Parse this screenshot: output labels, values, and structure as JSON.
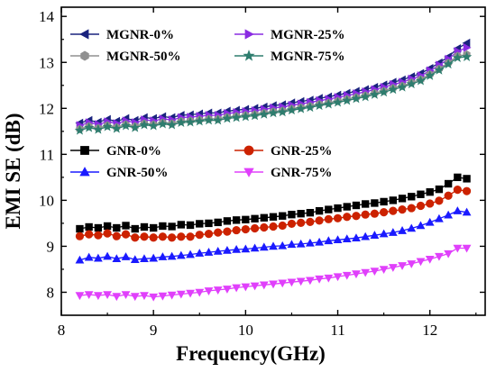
{
  "chart_data": {
    "type": "line",
    "xlabel": "Frequency(GHz)",
    "ylabel": "EMI SE (dB)",
    "xlim": [
      8,
      12.6
    ],
    "ylim": [
      7.5,
      14.2
    ],
    "xticks": [
      "8",
      "9",
      "10",
      "11",
      "12"
    ],
    "yticks": [
      "8",
      "9",
      "10",
      "11",
      "12",
      "13",
      "14"
    ],
    "grid": false,
    "x": [
      8.2,
      8.3,
      8.4,
      8.5,
      8.6,
      8.7,
      8.8,
      8.9,
      9.0,
      9.1,
      9.2,
      9.3,
      9.4,
      9.5,
      9.6,
      9.7,
      9.8,
      9.9,
      10.0,
      10.1,
      10.2,
      10.3,
      10.4,
      10.5,
      10.6,
      10.7,
      10.8,
      10.9,
      11.0,
      11.1,
      11.2,
      11.3,
      11.4,
      11.5,
      11.6,
      11.7,
      11.8,
      11.9,
      12.0,
      12.1,
      12.2,
      12.3,
      12.4
    ],
    "series": [
      {
        "name": "MGNR-0%",
        "color": "#1a237e",
        "marker": "triangle-left",
        "values": [
          11.68,
          11.74,
          11.7,
          11.76,
          11.72,
          11.78,
          11.74,
          11.8,
          11.78,
          11.82,
          11.8,
          11.85,
          11.86,
          11.88,
          11.9,
          11.9,
          11.94,
          11.96,
          11.98,
          12.0,
          12.03,
          12.06,
          12.08,
          12.12,
          12.15,
          12.18,
          12.22,
          12.25,
          12.29,
          12.33,
          12.37,
          12.41,
          12.46,
          12.51,
          12.57,
          12.62,
          12.69,
          12.76,
          12.87,
          12.99,
          13.12,
          13.3,
          13.42
        ]
      },
      {
        "name": "MGNR-25%",
        "color": "#8a2be2",
        "marker": "triangle-right",
        "values": [
          11.63,
          11.69,
          11.65,
          11.71,
          11.67,
          11.73,
          11.69,
          11.75,
          11.73,
          11.77,
          11.75,
          11.8,
          11.81,
          11.83,
          11.85,
          11.85,
          11.89,
          11.91,
          11.93,
          11.95,
          11.98,
          12.01,
          12.03,
          12.07,
          12.1,
          12.13,
          12.17,
          12.2,
          12.24,
          12.28,
          12.32,
          12.36,
          12.41,
          12.46,
          12.52,
          12.57,
          12.64,
          12.71,
          12.82,
          12.94,
          13.07,
          13.24,
          13.32
        ]
      },
      {
        "name": "MGNR-50%",
        "color": "#909090",
        "marker": "hexagon",
        "values": [
          11.55,
          11.61,
          11.57,
          11.63,
          11.59,
          11.65,
          11.61,
          11.67,
          11.65,
          11.69,
          11.67,
          11.72,
          11.73,
          11.75,
          11.77,
          11.77,
          11.81,
          11.83,
          11.85,
          11.87,
          11.9,
          11.93,
          11.95,
          11.99,
          12.02,
          12.05,
          12.09,
          12.12,
          12.16,
          12.2,
          12.24,
          12.28,
          12.33,
          12.38,
          12.44,
          12.49,
          12.56,
          12.63,
          12.74,
          12.86,
          12.99,
          13.14,
          13.17
        ]
      },
      {
        "name": "MGNR-75%",
        "color": "#2e7d6e",
        "marker": "star",
        "values": [
          11.52,
          11.58,
          11.54,
          11.6,
          11.56,
          11.62,
          11.58,
          11.64,
          11.62,
          11.66,
          11.64,
          11.69,
          11.7,
          11.72,
          11.74,
          11.74,
          11.78,
          11.8,
          11.82,
          11.84,
          11.87,
          11.9,
          11.92,
          11.96,
          11.99,
          12.02,
          12.06,
          12.09,
          12.13,
          12.17,
          12.21,
          12.25,
          12.3,
          12.35,
          12.41,
          12.46,
          12.53,
          12.6,
          12.71,
          12.83,
          12.96,
          13.1,
          13.12
        ]
      },
      {
        "name": "GNR-0%",
        "color": "#000000",
        "marker": "square",
        "values": [
          9.38,
          9.42,
          9.4,
          9.44,
          9.4,
          9.45,
          9.38,
          9.42,
          9.4,
          9.44,
          9.43,
          9.47,
          9.46,
          9.49,
          9.5,
          9.52,
          9.55,
          9.57,
          9.58,
          9.6,
          9.62,
          9.64,
          9.66,
          9.69,
          9.71,
          9.73,
          9.77,
          9.8,
          9.83,
          9.86,
          9.89,
          9.92,
          9.94,
          9.97,
          10.0,
          10.04,
          10.08,
          10.13,
          10.18,
          10.24,
          10.36,
          10.5,
          10.47
        ]
      },
      {
        "name": "GNR-25%",
        "color": "#cc2200",
        "marker": "circle",
        "values": [
          9.22,
          9.26,
          9.24,
          9.28,
          9.22,
          9.26,
          9.19,
          9.21,
          9.19,
          9.21,
          9.19,
          9.21,
          9.21,
          9.25,
          9.27,
          9.3,
          9.32,
          9.35,
          9.37,
          9.39,
          9.41,
          9.43,
          9.45,
          9.49,
          9.51,
          9.53,
          9.56,
          9.59,
          9.61,
          9.64,
          9.66,
          9.69,
          9.71,
          9.74,
          9.77,
          9.8,
          9.83,
          9.88,
          9.93,
          9.99,
          10.1,
          10.23,
          10.2
        ]
      },
      {
        "name": "GNR-50%",
        "color": "#1a1aff",
        "marker": "triangle-up",
        "values": [
          8.7,
          8.76,
          8.74,
          8.78,
          8.73,
          8.77,
          8.71,
          8.73,
          8.74,
          8.77,
          8.78,
          8.8,
          8.82,
          8.85,
          8.87,
          8.89,
          8.91,
          8.93,
          8.94,
          8.96,
          8.98,
          9.0,
          9.01,
          9.04,
          9.05,
          9.07,
          9.09,
          9.12,
          9.14,
          9.16,
          9.18,
          9.21,
          9.24,
          9.27,
          9.3,
          9.34,
          9.39,
          9.45,
          9.52,
          9.6,
          9.68,
          9.77,
          9.74
        ]
      },
      {
        "name": "GNR-75%",
        "color": "#e040fb",
        "marker": "triangle-down",
        "values": [
          7.93,
          7.95,
          7.93,
          7.95,
          7.91,
          7.95,
          7.91,
          7.93,
          7.9,
          7.92,
          7.94,
          7.96,
          7.98,
          8.0,
          8.03,
          8.05,
          8.07,
          8.1,
          8.12,
          8.14,
          8.16,
          8.18,
          8.2,
          8.22,
          8.24,
          8.26,
          8.29,
          8.31,
          8.34,
          8.37,
          8.4,
          8.43,
          8.46,
          8.5,
          8.54,
          8.58,
          8.62,
          8.67,
          8.72,
          8.78,
          8.84,
          8.96,
          8.96
        ]
      }
    ]
  }
}
